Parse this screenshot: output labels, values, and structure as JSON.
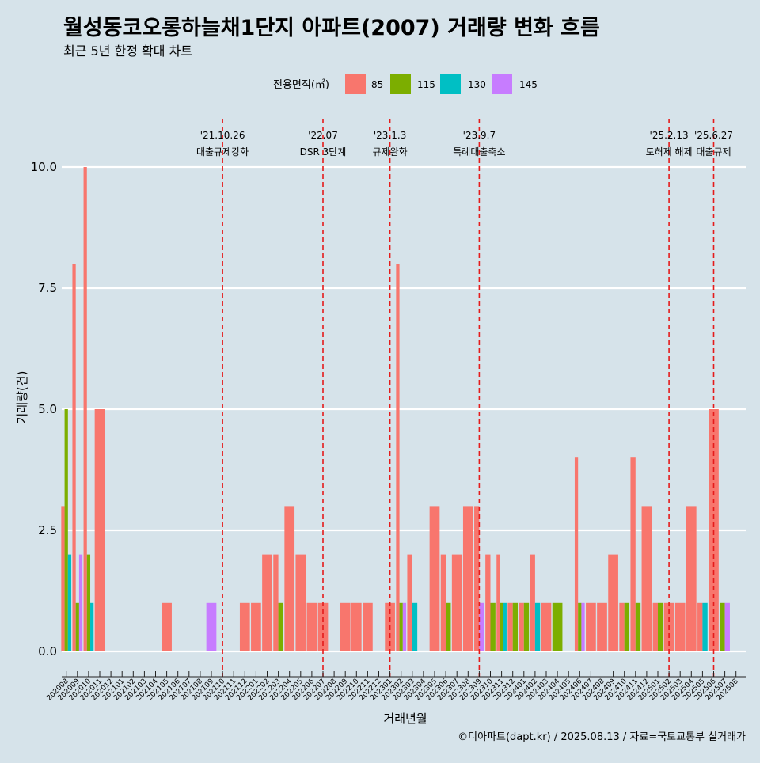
{
  "chart_data": {
    "type": "bar",
    "title": "월성동코오롱하늘채1단지 아파트(2007) 거래량 변화 흐름",
    "subtitle": "최근 5년 한정 확대 차트",
    "xlabel": "거래년월",
    "ylabel": "거래량(건)",
    "ylim": [
      0,
      10
    ],
    "yticks": [
      "0.0",
      "2.5",
      "5.0",
      "7.5",
      "10.0"
    ],
    "grid": true,
    "legend": {
      "title": "전용면적(㎡)",
      "position": "top",
      "items": [
        {
          "label": "85",
          "color": "#F8766D"
        },
        {
          "label": "115",
          "color": "#7CAE00"
        },
        {
          "label": "130",
          "color": "#00BFC4"
        },
        {
          "label": "145",
          "color": "#C77CFF"
        }
      ]
    },
    "categories": [
      "202008",
      "202009",
      "202010",
      "202011",
      "202012",
      "202101",
      "202102",
      "202103",
      "202104",
      "202105",
      "202106",
      "202107",
      "202108",
      "202109",
      "202110",
      "202111",
      "202112",
      "202201",
      "202202",
      "202203",
      "202204",
      "202205",
      "202206",
      "202207",
      "202208",
      "202209",
      "202210",
      "202211",
      "202212",
      "202301",
      "202302",
      "202303",
      "202304",
      "202305",
      "202306",
      "202307",
      "202308",
      "202309",
      "202310",
      "202311",
      "202312",
      "202401",
      "202402",
      "202403",
      "202404",
      "202405",
      "202406",
      "202407",
      "202408",
      "202409",
      "202410",
      "202411",
      "202412",
      "202501",
      "202502",
      "202503",
      "202504",
      "202505",
      "202506",
      "202507",
      "202508"
    ],
    "series": [
      {
        "name": "85",
        "color": "#F8766D",
        "values": [
          3,
          8,
          10,
          5,
          0,
          0,
          0,
          0,
          0,
          1,
          0,
          0,
          0,
          0,
          0,
          0,
          1,
          1,
          2,
          2,
          3,
          2,
          1,
          1,
          0,
          1,
          1,
          1,
          0,
          1,
          8,
          2,
          0,
          3,
          2,
          2,
          3,
          3,
          2,
          2,
          1,
          1,
          2,
          1,
          0,
          0,
          4,
          1,
          1,
          2,
          1,
          4,
          3,
          1,
          1,
          1,
          3,
          1,
          5,
          0,
          0
        ]
      },
      {
        "name": "115",
        "color": "#7CAE00",
        "values": [
          5,
          1,
          2,
          0,
          0,
          0,
          0,
          0,
          0,
          0,
          0,
          0,
          0,
          0,
          0,
          0,
          0,
          0,
          0,
          1,
          0,
          0,
          0,
          0,
          0,
          0,
          0,
          0,
          0,
          0,
          1,
          0,
          0,
          0,
          1,
          0,
          0,
          0,
          1,
          1,
          1,
          1,
          0,
          0,
          1,
          0,
          1,
          0,
          0,
          0,
          1,
          1,
          0,
          1,
          0,
          0,
          0,
          0,
          0,
          1,
          0
        ]
      },
      {
        "name": "130",
        "color": "#00BFC4",
        "values": [
          2,
          0,
          1,
          0,
          0,
          0,
          0,
          0,
          0,
          0,
          0,
          0,
          0,
          0,
          0,
          0,
          0,
          0,
          0,
          0,
          0,
          0,
          0,
          0,
          0,
          0,
          0,
          0,
          0,
          0,
          0,
          1,
          0,
          0,
          0,
          0,
          0,
          0,
          0,
          1,
          0,
          0,
          1,
          0,
          0,
          0,
          0,
          0,
          0,
          0,
          0,
          0,
          0,
          0,
          0,
          0,
          0,
          1,
          0,
          0,
          0
        ]
      },
      {
        "name": "145",
        "color": "#C77CFF",
        "values": [
          0,
          2,
          0,
          0,
          0,
          0,
          0,
          0,
          0,
          0,
          0,
          0,
          0,
          1,
          0,
          0,
          0,
          0,
          0,
          0,
          0,
          0,
          0,
          0,
          0,
          0,
          0,
          0,
          0,
          0,
          1,
          0,
          0,
          0,
          0,
          0,
          0,
          1,
          0,
          0,
          0,
          0,
          0,
          0,
          0,
          0,
          1,
          0,
          0,
          0,
          0,
          0,
          0,
          0,
          0,
          0,
          0,
          0,
          0,
          1,
          0
        ]
      }
    ],
    "events": [
      {
        "month": "202110",
        "date": "'21.10.26",
        "label": "대출규제강화"
      },
      {
        "month": "202207",
        "date": "'22.07",
        "label": "DSR 3단계"
      },
      {
        "month": "202301",
        "date": "'23.1.3",
        "label": "규제완화"
      },
      {
        "month": "202309",
        "date": "'23.9.7",
        "label": "특례대출축소"
      },
      {
        "month": "202502",
        "date": "'25.2.13",
        "label": "토허제 해제"
      },
      {
        "month": "202506",
        "date": "'25.6.27",
        "label": "대출규제"
      }
    ]
  },
  "caption": "©디아파트(dapt.kr) / 2025.08.13 / 자료=국토교통부 실거래가"
}
